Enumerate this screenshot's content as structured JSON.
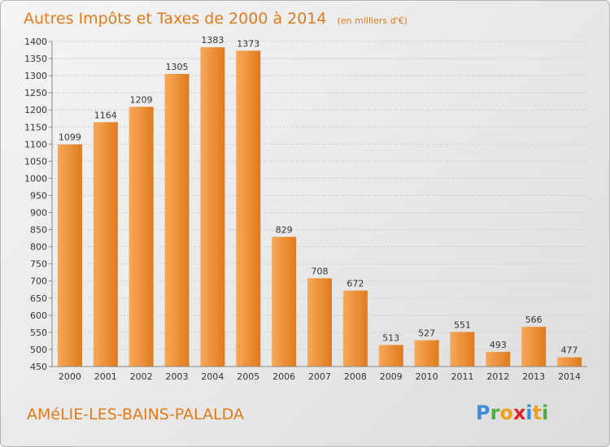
{
  "title": "Autres Impôts et Taxes de 2000 à 2014",
  "unit": "(en milliers d'€)",
  "commune": "AMéLIE-LES-BAINS-PALALDA",
  "brand": {
    "letters": [
      "P",
      "r",
      "o",
      "x",
      "i",
      "t",
      "i"
    ],
    "colors": [
      "#3a8fd6",
      "#4caf3c",
      "#f0a020",
      "#d9262c",
      "#3a8fd6",
      "#f0a020",
      "#4caf3c"
    ]
  },
  "colors": {
    "bar_light": "#f7a85a",
    "bar_dark": "#e07b1c",
    "accent": "#e07b1c"
  },
  "chart_data": {
    "type": "bar",
    "categories": [
      "2000",
      "2001",
      "2002",
      "2003",
      "2004",
      "2005",
      "2006",
      "2007",
      "2008",
      "2009",
      "2010",
      "2011",
      "2012",
      "2013",
      "2014"
    ],
    "values": [
      1099,
      1164,
      1209,
      1305,
      1383,
      1373,
      829,
      708,
      672,
      513,
      527,
      551,
      493,
      566,
      477
    ],
    "title": "Autres Impôts et Taxes de 2000 à 2014",
    "ylim": [
      450,
      1400
    ],
    "yticks": [
      450,
      500,
      550,
      600,
      650,
      700,
      750,
      800,
      850,
      900,
      950,
      1000,
      1050,
      1100,
      1150,
      1200,
      1250,
      1300,
      1350,
      1400
    ],
    "grid": true,
    "data_labels": true
  }
}
